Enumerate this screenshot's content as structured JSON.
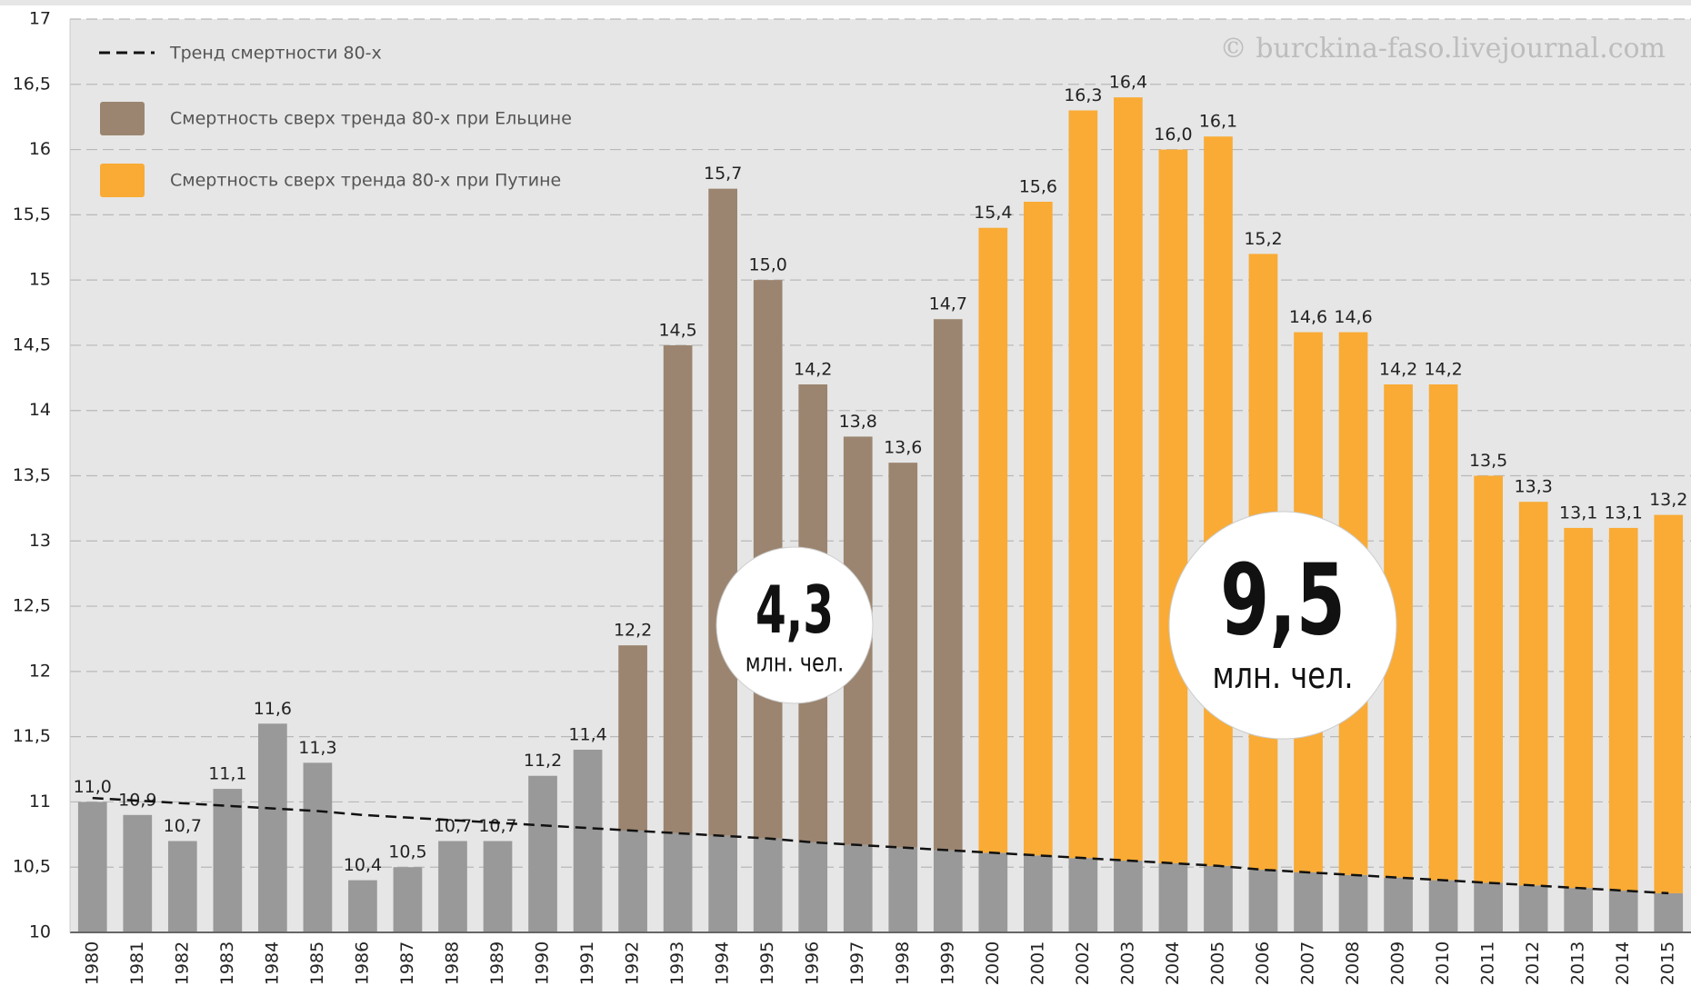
{
  "chart_data": {
    "type": "bar",
    "categories": [
      "1980",
      "1981",
      "1982",
      "1983",
      "1984",
      "1985",
      "1986",
      "1987",
      "1988",
      "1989",
      "1990",
      "1991",
      "1992",
      "1993",
      "1994",
      "1995",
      "1996",
      "1997",
      "1998",
      "1999",
      "2000",
      "2001",
      "2002",
      "2003",
      "2004",
      "2005",
      "2006",
      "2007",
      "2008",
      "2009",
      "2010",
      "2011",
      "2012",
      "2013",
      "2014",
      "2015"
    ],
    "values": [
      11.0,
      10.9,
      10.7,
      11.1,
      11.6,
      11.3,
      10.4,
      10.5,
      10.7,
      10.7,
      11.2,
      11.4,
      12.2,
      14.5,
      15.7,
      15.0,
      14.2,
      13.8,
      13.6,
      14.7,
      15.4,
      15.6,
      16.3,
      16.4,
      16.0,
      16.1,
      15.2,
      14.6,
      14.6,
      14.2,
      14.2,
      13.5,
      13.3,
      13.1,
      13.1,
      13.2
    ],
    "value_labels": [
      "11,0",
      "10,9",
      "10,7",
      "11,1",
      "11,6",
      "11,3",
      "10,4",
      "10,5",
      "10,7",
      "10,7",
      "11,2",
      "11,4",
      "12,2",
      "14,5",
      "15,7",
      "15,0",
      "14,2",
      "13,8",
      "13,6",
      "14,7",
      "15,4",
      "15,6",
      "16,3",
      "16,4",
      "16,0",
      "16,1",
      "15,2",
      "14,6",
      "14,6",
      "14,2",
      "14,2",
      "13,5",
      "13,3",
      "13,1",
      "13,1",
      "13,2"
    ],
    "color": "#999999",
    "trend": {
      "name": "Тренд смертности 80-х",
      "color": "#111111",
      "values": [
        11.03,
        11.01,
        10.99,
        10.97,
        10.95,
        10.93,
        10.9,
        10.88,
        10.86,
        10.84,
        10.82,
        10.8,
        10.78,
        10.76,
        10.74,
        10.72,
        10.69,
        10.67,
        10.65,
        10.63,
        10.61,
        10.59,
        10.57,
        10.55,
        10.53,
        10.51,
        10.48,
        10.46,
        10.44,
        10.42,
        10.4,
        10.38,
        10.36,
        10.34,
        10.32,
        10.3
      ]
    },
    "series": [
      {
        "name": "Смертность сверх тренда 80-х при Ельцине",
        "color": "#9b8570",
        "start": "1992",
        "end": "1999"
      },
      {
        "name": "Смертность сверх тренда 80-х при Путине",
        "color": "#f9ab35",
        "start": "2000",
        "end": "2015"
      }
    ],
    "annotations": [
      {
        "value": "4,3",
        "unit": "млн. чел."
      },
      {
        "value": "9,5",
        "unit": "млн. чел."
      }
    ],
    "watermark": "© burckina-faso.livejournal.com",
    "ylim": [
      10,
      17
    ],
    "yticks": [
      10,
      {
        "value": 10.5,
        "label": "10,5"
      },
      11,
      {
        "value": 11.5,
        "label": "11,5"
      },
      12,
      {
        "value": 12.5,
        "label": "12,5"
      },
      13,
      {
        "value": 13.5,
        "label": "13,5"
      },
      14,
      {
        "value": 14.5,
        "label": "14,5"
      },
      15,
      {
        "value": 15.5,
        "label": "15,5"
      },
      16,
      {
        "value": 16.5,
        "label": "16,5"
      },
      17
    ],
    "grid": true
  }
}
